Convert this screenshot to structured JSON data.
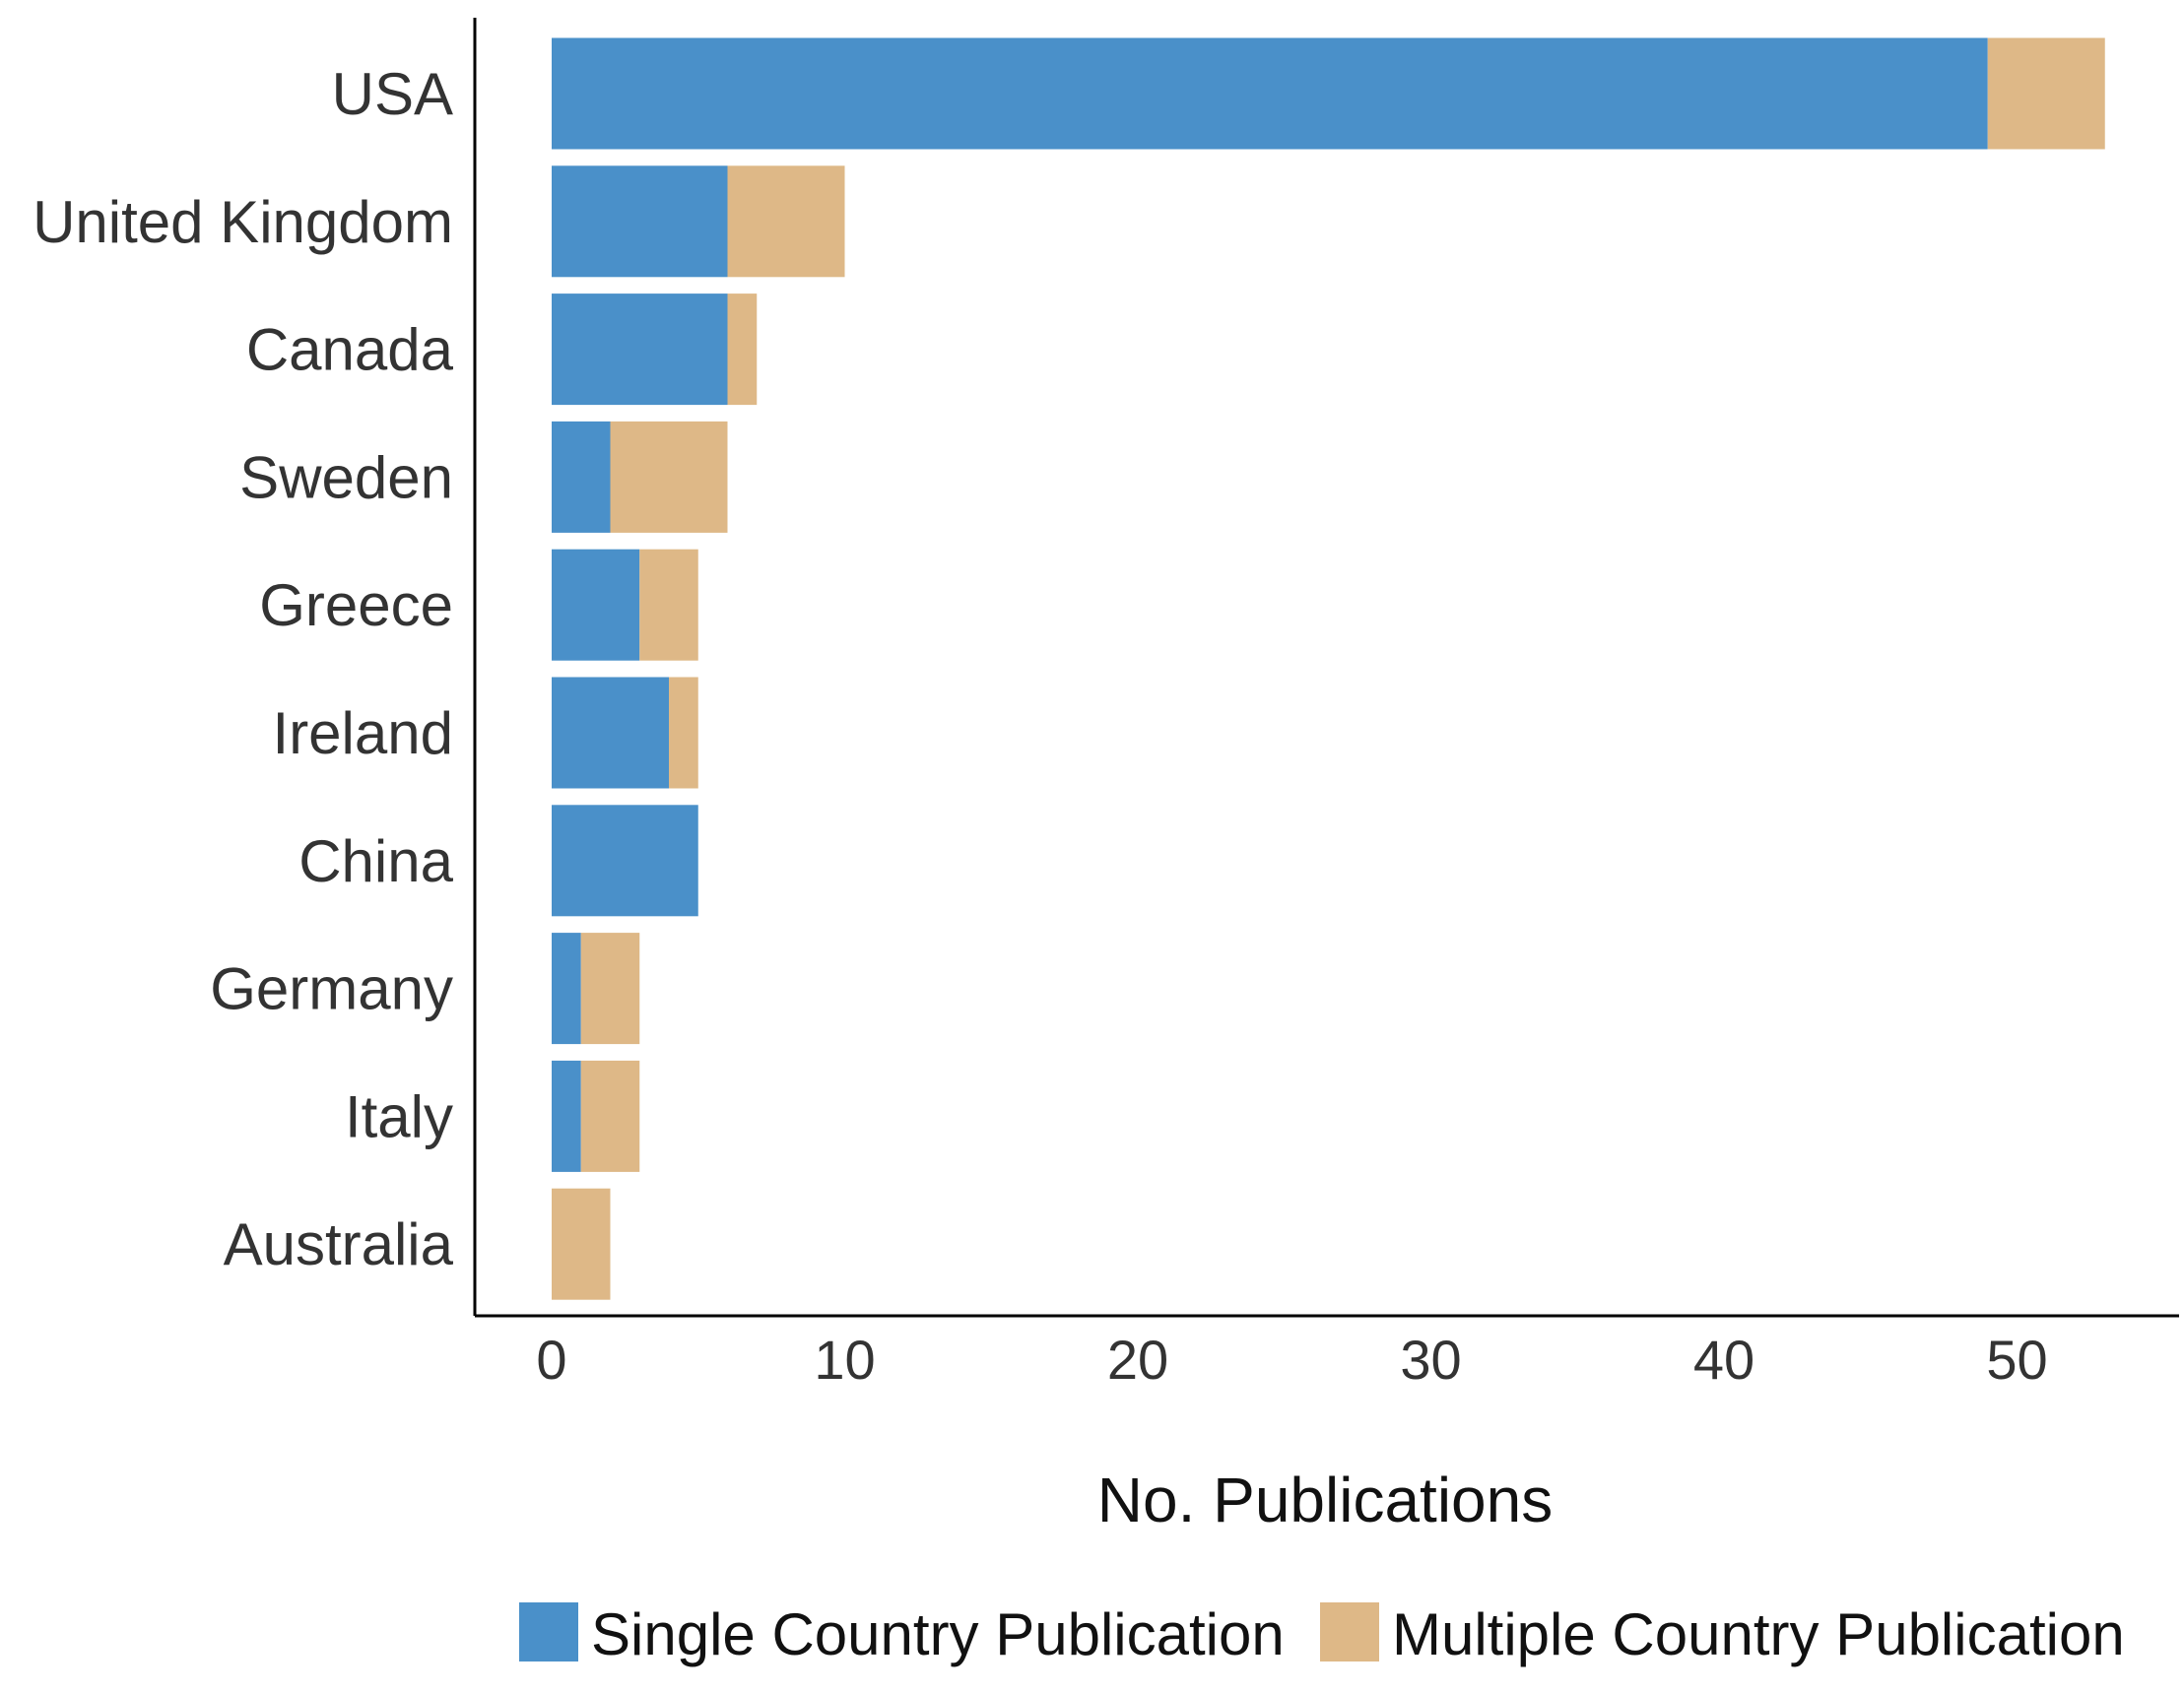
{
  "chart_data": {
    "type": "bar",
    "orientation": "horizontal",
    "stacked": true,
    "categories": [
      "USA",
      "United Kingdom",
      "Canada",
      "Sweden",
      "Greece",
      "Ireland",
      "China",
      "Germany",
      "Italy",
      "Australia"
    ],
    "series": [
      {
        "name": "Single Country Publication",
        "color": "#4a90c9",
        "values": [
          49,
          6,
          6,
          2,
          3,
          4,
          5,
          1,
          1,
          0
        ]
      },
      {
        "name": "Multiple Country Publication",
        "color": "#deb887",
        "values": [
          4,
          4,
          1,
          4,
          2,
          1,
          0,
          2,
          2,
          2
        ]
      }
    ],
    "xlabel": "No. Publications",
    "ylabel": "",
    "title": "",
    "xlim": [
      0,
      55
    ],
    "xticks": [
      0,
      10,
      20,
      30,
      40,
      50
    ],
    "grid": false,
    "legend_position": "bottom"
  }
}
